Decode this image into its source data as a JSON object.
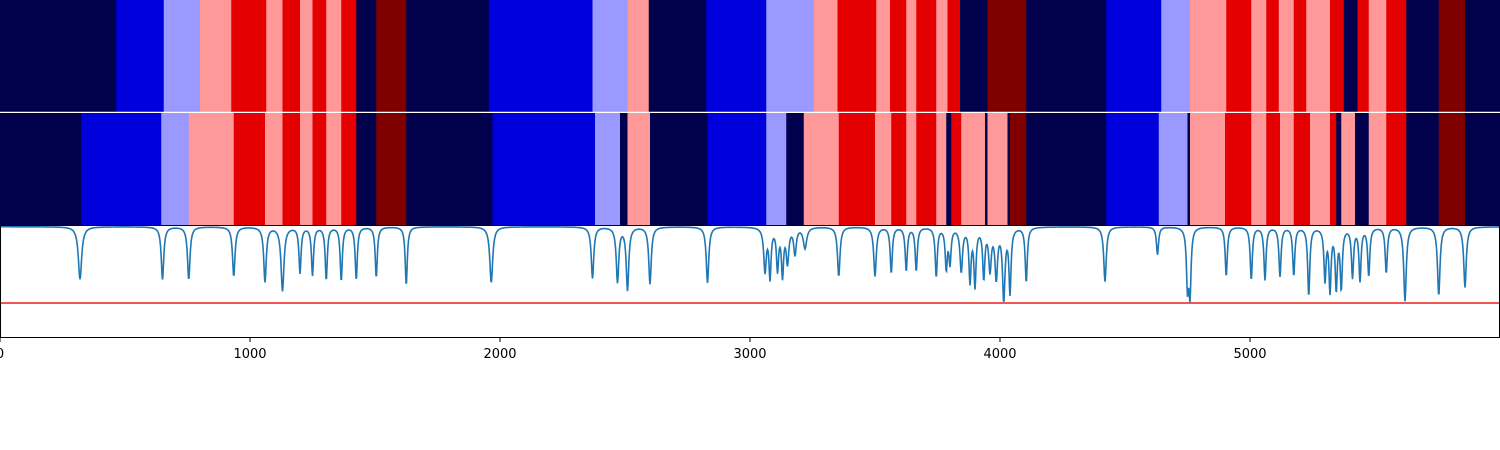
{
  "chart_data": [
    {
      "type": "heatmap",
      "name": "state-band-top",
      "x_range": [
        0,
        6000
      ],
      "colors": [
        "#00004c",
        "#0000dd",
        "#9999ff",
        "#ff9999",
        "#e40000",
        "#800000"
      ],
      "segments": [
        [
          0,
          465,
          0
        ],
        [
          465,
          655,
          1
        ],
        [
          655,
          800,
          2
        ],
        [
          800,
          925,
          3
        ],
        [
          925,
          1065,
          4
        ],
        [
          1065,
          1130,
          3
        ],
        [
          1130,
          1200,
          4
        ],
        [
          1200,
          1250,
          3
        ],
        [
          1250,
          1305,
          4
        ],
        [
          1305,
          1365,
          3
        ],
        [
          1365,
          1425,
          4
        ],
        [
          1425,
          1505,
          0
        ],
        [
          1505,
          1625,
          5
        ],
        [
          1625,
          1955,
          0
        ],
        [
          1955,
          2370,
          1
        ],
        [
          2370,
          2510,
          2
        ],
        [
          2510,
          2595,
          3
        ],
        [
          2595,
          2825,
          0
        ],
        [
          2825,
          3065,
          1
        ],
        [
          3065,
          3255,
          2
        ],
        [
          3255,
          3350,
          3
        ],
        [
          3350,
          3505,
          4
        ],
        [
          3505,
          3560,
          3
        ],
        [
          3560,
          3625,
          4
        ],
        [
          3625,
          3665,
          3
        ],
        [
          3665,
          3745,
          4
        ],
        [
          3745,
          3790,
          3
        ],
        [
          3790,
          3840,
          4
        ],
        [
          3840,
          3950,
          0
        ],
        [
          3950,
          4105,
          5
        ],
        [
          4105,
          4425,
          0
        ],
        [
          4425,
          4645,
          1
        ],
        [
          4645,
          4760,
          2
        ],
        [
          4760,
          4905,
          3
        ],
        [
          4905,
          5005,
          4
        ],
        [
          5005,
          5065,
          3
        ],
        [
          5065,
          5115,
          4
        ],
        [
          5115,
          5175,
          3
        ],
        [
          5175,
          5225,
          4
        ],
        [
          5225,
          5320,
          3
        ],
        [
          5320,
          5375,
          4
        ],
        [
          5375,
          5430,
          0
        ],
        [
          5430,
          5475,
          4
        ],
        [
          5475,
          5545,
          3
        ],
        [
          5545,
          5625,
          4
        ],
        [
          5625,
          5755,
          0
        ],
        [
          5755,
          5860,
          5
        ],
        [
          5860,
          6000,
          0
        ]
      ]
    },
    {
      "type": "heatmap",
      "name": "state-band-bottom",
      "x_range": [
        0,
        6000
      ],
      "colors": [
        "#00004c",
        "#0000dd",
        "#9999ff",
        "#ff9999",
        "#e40000",
        "#800000"
      ],
      "segments": [
        [
          0,
          325,
          0
        ],
        [
          325,
          645,
          1
        ],
        [
          645,
          755,
          2
        ],
        [
          755,
          935,
          3
        ],
        [
          935,
          1060,
          4
        ],
        [
          1060,
          1130,
          3
        ],
        [
          1130,
          1200,
          4
        ],
        [
          1200,
          1250,
          3
        ],
        [
          1250,
          1305,
          4
        ],
        [
          1305,
          1365,
          3
        ],
        [
          1365,
          1425,
          4
        ],
        [
          1425,
          1505,
          0
        ],
        [
          1505,
          1625,
          5
        ],
        [
          1625,
          1970,
          0
        ],
        [
          1970,
          2380,
          1
        ],
        [
          2380,
          2480,
          2
        ],
        [
          2480,
          2510,
          0
        ],
        [
          2510,
          2600,
          3
        ],
        [
          2600,
          2830,
          0
        ],
        [
          2830,
          3065,
          1
        ],
        [
          3065,
          3145,
          2
        ],
        [
          3145,
          3215,
          0
        ],
        [
          3215,
          3355,
          3
        ],
        [
          3355,
          3500,
          4
        ],
        [
          3500,
          3565,
          3
        ],
        [
          3565,
          3625,
          4
        ],
        [
          3625,
          3665,
          3
        ],
        [
          3665,
          3745,
          4
        ],
        [
          3745,
          3785,
          3
        ],
        [
          3785,
          3805,
          0
        ],
        [
          3805,
          3845,
          4
        ],
        [
          3845,
          3940,
          3
        ],
        [
          3940,
          3950,
          0
        ],
        [
          3950,
          4030,
          3
        ],
        [
          4030,
          4040,
          0
        ],
        [
          4040,
          4105,
          5
        ],
        [
          4105,
          4425,
          0
        ],
        [
          4425,
          4635,
          1
        ],
        [
          4635,
          4750,
          2
        ],
        [
          4750,
          4760,
          0
        ],
        [
          4760,
          4900,
          3
        ],
        [
          4900,
          5005,
          4
        ],
        [
          5005,
          5065,
          3
        ],
        [
          5065,
          5120,
          4
        ],
        [
          5120,
          5175,
          3
        ],
        [
          5175,
          5240,
          4
        ],
        [
          5240,
          5320,
          3
        ],
        [
          5320,
          5345,
          4
        ],
        [
          5345,
          5365,
          0
        ],
        [
          5365,
          5420,
          3
        ],
        [
          5420,
          5475,
          0
        ],
        [
          5475,
          5545,
          3
        ],
        [
          5545,
          5625,
          4
        ],
        [
          5625,
          5755,
          0
        ],
        [
          5755,
          5860,
          5
        ],
        [
          5860,
          6000,
          0
        ]
      ]
    },
    {
      "type": "line",
      "name": "signal-with-threshold",
      "x_range": [
        0,
        6000
      ],
      "xticks": [
        {
          "value": 0,
          "label": "0"
        },
        {
          "value": 1000,
          "label": "1000"
        },
        {
          "value": 2000,
          "label": "2000"
        },
        {
          "value": 3000,
          "label": "3000"
        },
        {
          "value": 4000,
          "label": "4000"
        },
        {
          "value": 5000,
          "label": "5000"
        }
      ],
      "ylim": [
        0,
        1
      ],
      "baseline": 0.985,
      "threshold": 0.31,
      "line_color": "#1f77b4",
      "threshold_color": "#e8201c",
      "dips": [
        [
          320,
          0.52,
          8
        ],
        [
          650,
          0.52,
          6
        ],
        [
          755,
          0.52,
          6
        ],
        [
          935,
          0.55,
          6
        ],
        [
          1060,
          0.5,
          6
        ],
        [
          1130,
          0.42,
          7
        ],
        [
          1200,
          0.58,
          5
        ],
        [
          1250,
          0.56,
          5
        ],
        [
          1305,
          0.52,
          5
        ],
        [
          1365,
          0.51,
          5
        ],
        [
          1425,
          0.52,
          5
        ],
        [
          1505,
          0.54,
          5
        ],
        [
          1625,
          0.47,
          5
        ],
        [
          1965,
          0.49,
          7
        ],
        [
          2370,
          0.53,
          6
        ],
        [
          2470,
          0.5,
          6
        ],
        [
          2510,
          0.43,
          6
        ],
        [
          2600,
          0.48,
          6
        ],
        [
          2830,
          0.49,
          6
        ],
        [
          3060,
          0.6,
          6
        ],
        [
          3080,
          0.55,
          5
        ],
        [
          3110,
          0.62,
          5
        ],
        [
          3130,
          0.57,
          5
        ],
        [
          3150,
          0.68,
          6
        ],
        [
          3180,
          0.75,
          6
        ],
        [
          3220,
          0.8,
          8
        ],
        [
          3355,
          0.55,
          6
        ],
        [
          3500,
          0.55,
          6
        ],
        [
          3565,
          0.58,
          5
        ],
        [
          3625,
          0.6,
          5
        ],
        [
          3665,
          0.6,
          5
        ],
        [
          3745,
          0.55,
          5
        ],
        [
          3785,
          0.63,
          5
        ],
        [
          3800,
          0.68,
          5
        ],
        [
          3845,
          0.6,
          6
        ],
        [
          3880,
          0.52,
          5
        ],
        [
          3900,
          0.48,
          5
        ],
        [
          3935,
          0.55,
          5
        ],
        [
          3960,
          0.62,
          6
        ],
        [
          3985,
          0.55,
          6
        ],
        [
          4015,
          0.36,
          6
        ],
        [
          4040,
          0.42,
          5
        ],
        [
          4105,
          0.5,
          5
        ],
        [
          4420,
          0.5,
          6
        ],
        [
          4630,
          0.74,
          5
        ],
        [
          4750,
          0.48,
          5
        ],
        [
          4760,
          0.42,
          5
        ],
        [
          4905,
          0.55,
          5
        ],
        [
          5005,
          0.52,
          5
        ],
        [
          5060,
          0.52,
          5
        ],
        [
          5120,
          0.55,
          5
        ],
        [
          5175,
          0.56,
          5
        ],
        [
          5235,
          0.38,
          5
        ],
        [
          5300,
          0.53,
          5
        ],
        [
          5320,
          0.44,
          5
        ],
        [
          5345,
          0.46,
          5
        ],
        [
          5365,
          0.46,
          5
        ],
        [
          5410,
          0.55,
          5
        ],
        [
          5440,
          0.52,
          5
        ],
        [
          5475,
          0.56,
          5
        ],
        [
          5545,
          0.58,
          5
        ],
        [
          5620,
          0.33,
          6
        ],
        [
          5755,
          0.38,
          6
        ],
        [
          5860,
          0.45,
          6
        ]
      ]
    }
  ]
}
